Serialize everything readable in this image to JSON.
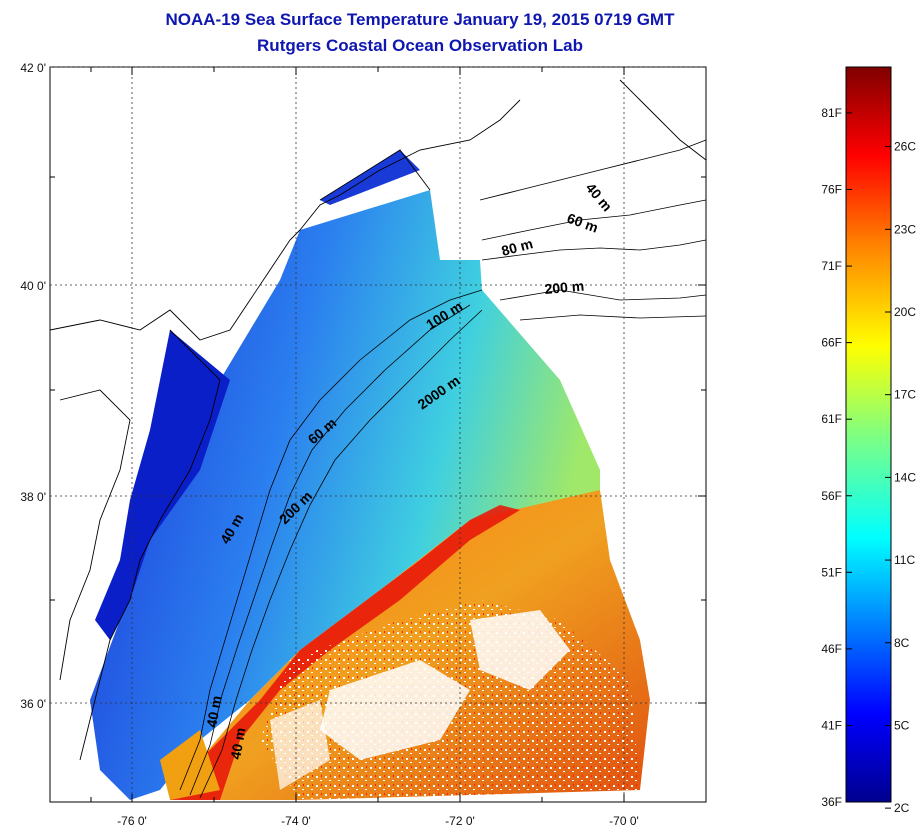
{
  "title": "NOAA-19 Sea Surface Temperature January 19, 2015 0719 GMT",
  "subtitle": "Rutgers Coastal Ocean Observation Lab",
  "map": {
    "lon_range": [
      -77.0,
      -69.0
    ],
    "lat_range": [
      35.0,
      42.0
    ],
    "lon_ticks": [
      {
        "value": -76,
        "label": "-76 0'"
      },
      {
        "value": -74,
        "label": "-74 0'"
      },
      {
        "value": -72,
        "label": "-72 0'"
      },
      {
        "value": -70,
        "label": "-70 0'"
      }
    ],
    "lat_ticks": [
      {
        "value": 42,
        "label": "42 0'"
      },
      {
        "value": 40,
        "label": "40 0'"
      },
      {
        "value": 38,
        "label": "38 0'"
      },
      {
        "value": 36,
        "label": "36 0'"
      }
    ],
    "grid": "dotted",
    "isobath_labels": [
      "40 m",
      "60 m",
      "80 m",
      "200 m",
      "100 m",
      "2000 m",
      "60 m",
      "200 m",
      "40 m",
      "40 m",
      "40 m"
    ]
  },
  "colorbar": {
    "min_f": 36,
    "max_f": 84,
    "fahrenheit": [
      "81F",
      "76F",
      "71F",
      "66F",
      "61F",
      "56F",
      "51F",
      "46F",
      "41F",
      "36F"
    ],
    "celsius": [
      "26C",
      "23C",
      "20C",
      "17C",
      "14C",
      "11C",
      "8C",
      "5C",
      "2C"
    ],
    "colors": [
      "#00008f",
      "#0000ff",
      "#0080ff",
      "#00ffff",
      "#80ff80",
      "#ffff00",
      "#ff8000",
      "#ff0000",
      "#800000"
    ]
  }
}
